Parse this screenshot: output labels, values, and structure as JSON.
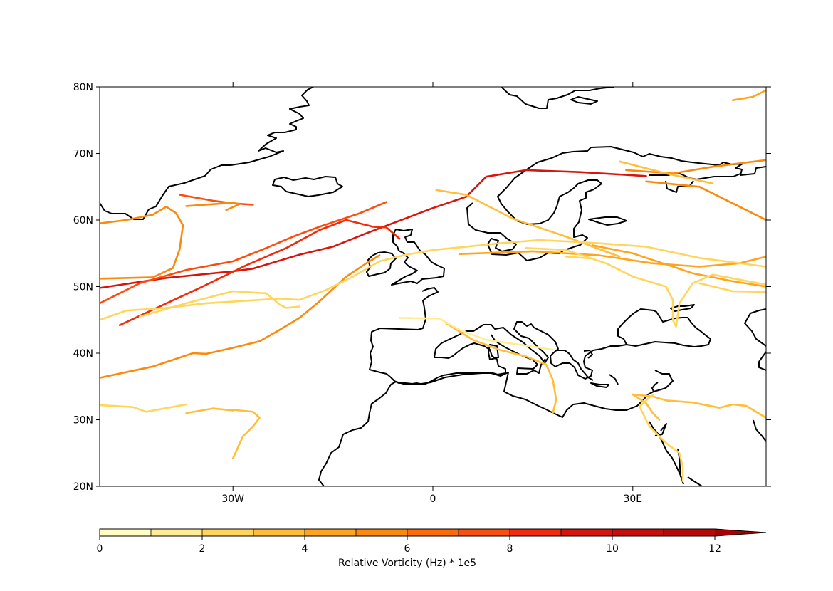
{
  "map": {
    "projection": "PlateCarree",
    "lon_range": [
      -50,
      50
    ],
    "lat_range": [
      20,
      80
    ],
    "lat_ticks": [
      {
        "value": 80,
        "label": "80N"
      },
      {
        "value": 70,
        "label": "70N"
      },
      {
        "value": 60,
        "label": "60N"
      },
      {
        "value": 50,
        "label": "50N"
      },
      {
        "value": 40,
        "label": "40N"
      },
      {
        "value": 30,
        "label": "30N"
      },
      {
        "value": 20,
        "label": "20N"
      }
    ],
    "lon_ticks": [
      {
        "value": -30,
        "label": "30W"
      },
      {
        "value": 0,
        "label": "0"
      },
      {
        "value": 30,
        "label": "30E"
      }
    ],
    "coastline_color": "#000000"
  },
  "chart_data": {
    "type": "line",
    "description_kind": "storm tracks colored by vorticity",
    "tracks": [
      {
        "intensity": 9.5,
        "points": [
          [
            -50,
            49.8
          ],
          [
            -40,
            51.3
          ],
          [
            -30,
            52.3
          ],
          [
            -27,
            52.7
          ],
          [
            -20,
            54.8
          ],
          [
            -15,
            56.0
          ],
          [
            -10,
            58.0
          ],
          [
            0,
            61.8
          ],
          [
            5,
            63.5
          ],
          [
            8,
            66.5
          ],
          [
            14,
            67.5
          ],
          [
            22,
            67.2
          ],
          [
            32,
            66.6
          ]
        ]
      },
      {
        "intensity": 8.0,
        "points": [
          [
            -47,
            44.2
          ],
          [
            -35,
            49.8
          ],
          [
            -28,
            53.2
          ],
          [
            -22,
            55.8
          ],
          [
            -17,
            58.5
          ],
          [
            -13,
            60.0
          ],
          [
            -9,
            59.0
          ],
          [
            -7,
            58.9
          ],
          [
            -5,
            57.2
          ]
        ]
      },
      {
        "intensity": 7.5,
        "points": [
          [
            -50,
            47.5
          ],
          [
            -44,
            50.5
          ],
          [
            -37,
            52.5
          ],
          [
            -30,
            53.8
          ],
          [
            -25,
            55.8
          ],
          [
            -21,
            57.5
          ],
          [
            -17,
            59.0
          ],
          [
            -11,
            61.0
          ],
          [
            -7,
            62.7
          ]
        ]
      },
      {
        "intensity": 7.0,
        "points": [
          [
            -38,
            63.8
          ],
          [
            -33,
            62.9
          ],
          [
            -30,
            62.5
          ],
          [
            -27,
            62.3
          ]
        ]
      },
      {
        "intensity": 5.2,
        "points": [
          [
            -50,
            36.3
          ],
          [
            -42,
            38.0
          ],
          [
            -36,
            40.0
          ],
          [
            -34,
            39.9
          ],
          [
            -30,
            40.8
          ],
          [
            -26,
            41.8
          ],
          [
            -23,
            43.5
          ],
          [
            -20,
            45.3
          ],
          [
            -17,
            47.8
          ],
          [
            -13,
            51.5
          ],
          [
            -10,
            53.5
          ],
          [
            -8,
            54.7
          ]
        ]
      },
      {
        "intensity": 5.0,
        "points": [
          [
            -50,
            51.2
          ],
          [
            -42,
            51.4
          ],
          [
            -39,
            52.8
          ],
          [
            -38,
            55.6
          ],
          [
            -37.5,
            59.2
          ],
          [
            -38.5,
            61.0
          ],
          [
            -40,
            62.0
          ],
          [
            -42,
            60.8
          ],
          [
            -46,
            60.0
          ],
          [
            -50,
            59.5
          ]
        ]
      },
      {
        "intensity": 5.5,
        "points": [
          [
            -37,
            62.1
          ],
          [
            -30,
            62.6
          ],
          [
            -29,
            62.4
          ],
          [
            -31,
            61.5
          ]
        ]
      },
      {
        "intensity": 4.8,
        "points": [
          [
            4,
            54.9
          ],
          [
            15,
            55.3
          ],
          [
            25,
            54.7
          ],
          [
            33,
            53.5
          ],
          [
            40,
            53.0
          ],
          [
            46,
            53.5
          ],
          [
            50,
            54.5
          ]
        ]
      },
      {
        "intensity": 5.2,
        "points": [
          [
            29,
            67.5
          ],
          [
            36,
            67.0
          ],
          [
            42,
            68.0
          ],
          [
            50,
            69.0
          ]
        ]
      },
      {
        "intensity": 5.0,
        "points": [
          [
            32,
            65.8
          ],
          [
            40,
            65.0
          ],
          [
            45,
            62.5
          ],
          [
            50,
            60.0
          ]
        ]
      },
      {
        "intensity": 4.5,
        "points": [
          [
            45,
            78.0
          ],
          [
            48,
            78.5
          ],
          [
            50,
            79.5
          ]
        ]
      },
      {
        "intensity": 4.5,
        "points": [
          [
            24,
            56.2
          ],
          [
            30,
            55.0
          ],
          [
            39,
            52.0
          ],
          [
            45,
            50.8
          ],
          [
            50,
            50.0
          ]
        ]
      },
      {
        "intensity": 3.8,
        "points": [
          [
            0.5,
            64.5
          ],
          [
            5,
            63.8
          ],
          [
            12,
            60.2
          ],
          [
            20,
            57.5
          ],
          [
            28,
            54.5
          ]
        ]
      },
      {
        "intensity": 3.5,
        "points": [
          [
            28,
            68.8
          ],
          [
            35,
            67.0
          ],
          [
            42,
            65.5
          ]
        ]
      },
      {
        "intensity": 3.2,
        "points": [
          [
            -30,
            31.5
          ],
          [
            -27,
            31.2
          ],
          [
            -26,
            30.3
          ],
          [
            -27,
            29.0
          ],
          [
            -28.5,
            27.5
          ],
          [
            -30,
            24.2
          ]
        ]
      },
      {
        "intensity": 3.0,
        "points": [
          [
            -37,
            31.0
          ],
          [
            -33,
            31.7
          ],
          [
            -30,
            31.4
          ]
        ]
      },
      {
        "intensity": 3.0,
        "points": [
          [
            2,
            44.5
          ],
          [
            6,
            42.0
          ],
          [
            10,
            40.5
          ],
          [
            14,
            39.5
          ],
          [
            17,
            38.3
          ],
          [
            18,
            36.0
          ],
          [
            18.5,
            33.0
          ],
          [
            18,
            31.0
          ]
        ]
      },
      {
        "intensity": 3.2,
        "points": [
          [
            30,
            33.8
          ],
          [
            32,
            32.5
          ],
          [
            33,
            31.0
          ],
          [
            34,
            30.0
          ]
        ]
      },
      {
        "intensity": 3.4,
        "points": [
          [
            30,
            33.8
          ],
          [
            33,
            33.5
          ],
          [
            35,
            32.9
          ],
          [
            39,
            32.6
          ],
          [
            43,
            31.8
          ],
          [
            45,
            32.3
          ],
          [
            47,
            32.1
          ],
          [
            50,
            30.3
          ]
        ]
      },
      {
        "intensity": 2.8,
        "points": [
          [
            40,
            50.5
          ],
          [
            45,
            49.3
          ],
          [
            50,
            49.2
          ]
        ]
      },
      {
        "intensity": 2.5,
        "points": [
          [
            -44,
            45.5
          ],
          [
            -37,
            47.5
          ],
          [
            -30,
            49.3
          ],
          [
            -25,
            49.0
          ],
          [
            -23,
            47.3
          ],
          [
            -22,
            46.8
          ],
          [
            -20,
            47.0
          ]
        ]
      },
      {
        "intensity": 2.0,
        "points": [
          [
            -50,
            45.0
          ],
          [
            -46,
            46.4
          ],
          [
            -40,
            46.8
          ],
          [
            -34,
            47.5
          ],
          [
            -26,
            48.0
          ],
          [
            -23,
            48.2
          ],
          [
            -20,
            48.0
          ],
          [
            -16,
            49.5
          ],
          [
            -12,
            51.5
          ],
          [
            -8,
            53.8
          ],
          [
            -4,
            54.8
          ],
          [
            0,
            55.5
          ],
          [
            5,
            56.0
          ],
          [
            10,
            56.5
          ],
          [
            16,
            57.0
          ],
          [
            20,
            56.8
          ],
          [
            25,
            56.5
          ],
          [
            32,
            56.0
          ],
          [
            40,
            54.3
          ],
          [
            50,
            53.0
          ]
        ]
      },
      {
        "intensity": 2.2,
        "points": [
          [
            -50,
            32.2
          ],
          [
            -45,
            31.9
          ],
          [
            -43,
            31.2
          ],
          [
            -37,
            32.3
          ]
        ]
      },
      {
        "intensity": 1.5,
        "points": [
          [
            -5,
            45.3
          ],
          [
            1,
            45.2
          ],
          [
            4,
            43.5
          ],
          [
            8,
            42.0
          ],
          [
            15,
            41.0
          ],
          [
            18,
            40.5
          ]
        ]
      },
      {
        "intensity": 2.4,
        "points": [
          [
            14,
            55.8
          ],
          [
            20,
            55.5
          ],
          [
            26,
            53.5
          ],
          [
            30,
            51.5
          ],
          [
            35,
            50.0
          ],
          [
            36,
            48.0
          ],
          [
            36,
            45.0
          ],
          [
            36.5,
            44.0
          ],
          [
            37,
            47.5
          ],
          [
            39,
            50.5
          ],
          [
            42,
            51.8
          ],
          [
            50,
            50.3
          ]
        ]
      },
      {
        "intensity": 2.6,
        "points": [
          [
            33,
            33.8
          ],
          [
            31,
            32.0
          ],
          [
            32.5,
            29.0
          ],
          [
            35,
            26.5
          ],
          [
            37,
            25.0
          ],
          [
            37.5,
            23.0
          ],
          [
            37.5,
            20.8
          ]
        ]
      },
      {
        "intensity": 2.0,
        "points": [
          [
            20,
            54.5
          ],
          [
            24,
            54.2
          ]
        ]
      }
    ]
  },
  "colorbar": {
    "label": "Relative Vorticity (Hz) * 1e5",
    "vmin": 0,
    "vmax": 13,
    "extend": "max",
    "ticks": [
      {
        "value": 0,
        "label": "0"
      },
      {
        "value": 2,
        "label": "2"
      },
      {
        "value": 4,
        "label": "4"
      },
      {
        "value": 6,
        "label": "6"
      },
      {
        "value": 8,
        "label": "8"
      },
      {
        "value": 10,
        "label": "10"
      },
      {
        "value": 12,
        "label": "12"
      }
    ],
    "bins": [
      {
        "from": 0,
        "to": 1,
        "color": "#fffdc2"
      },
      {
        "from": 1,
        "to": 2,
        "color": "#ffec94"
      },
      {
        "from": 2,
        "to": 3,
        "color": "#ffd65b"
      },
      {
        "from": 3,
        "to": 4,
        "color": "#ffbd38"
      },
      {
        "from": 4,
        "to": 5,
        "color": "#ffa41c"
      },
      {
        "from": 5,
        "to": 6,
        "color": "#fb8a0c"
      },
      {
        "from": 6,
        "to": 7,
        "color": "#fc6a0a"
      },
      {
        "from": 7,
        "to": 8,
        "color": "#fb4d0d"
      },
      {
        "from": 8,
        "to": 9,
        "color": "#f02a0a"
      },
      {
        "from": 9,
        "to": 10,
        "color": "#d8150c"
      },
      {
        "from": 10,
        "to": 11,
        "color": "#c80d0d"
      },
      {
        "from": 11,
        "to": 12,
        "color": "#b80808"
      },
      {
        "from": 12,
        "to": 13,
        "color": "#a20404"
      }
    ]
  }
}
